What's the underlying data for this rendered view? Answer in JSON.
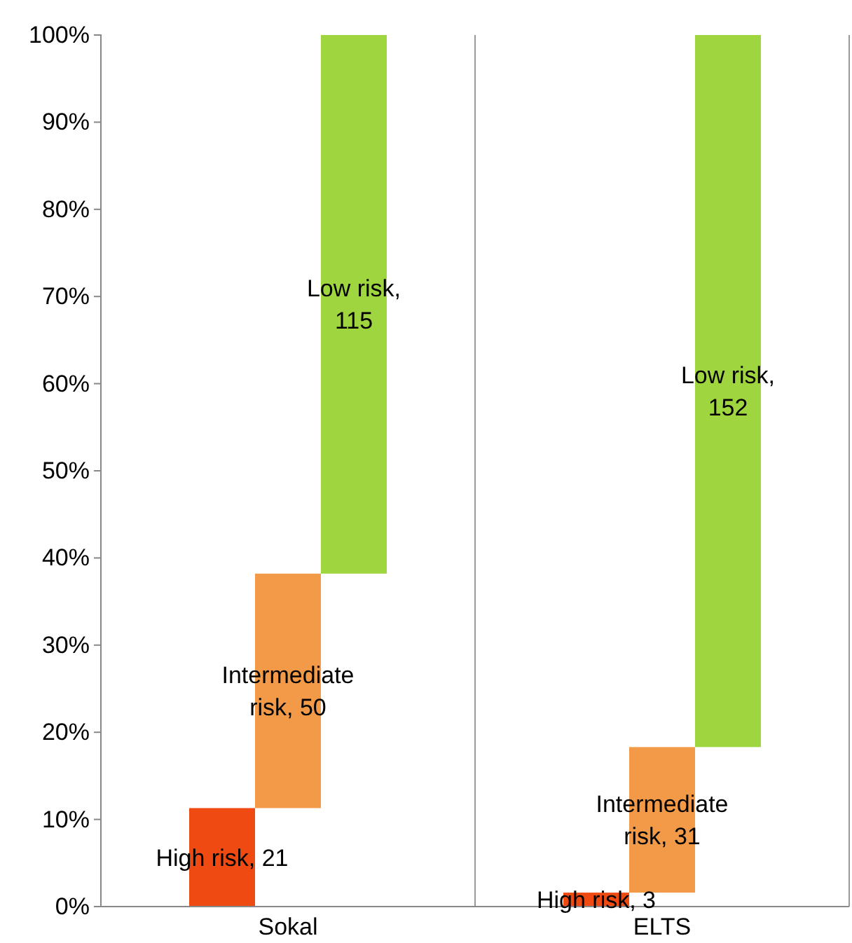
{
  "chart_data": {
    "type": "bar",
    "categories": [
      "Sokal",
      "ELTS"
    ],
    "series": [
      {
        "color": "#ee4a12",
        "values": [
          11.3,
          1.6
        ],
        "base": [
          0,
          0
        ]
      },
      {
        "color": "#f39a48",
        "values": [
          26.9,
          16.7
        ],
        "base": [
          11.3,
          1.6
        ]
      },
      {
        "color": "#9fd640",
        "values": [
          61.8,
          81.7
        ],
        "base": [
          38.2,
          18.3
        ]
      }
    ],
    "annotations": [
      "High risk, 21",
      "Intermediate risk, 50",
      "Low risk, 115",
      "High risk, 3",
      "Intermediate risk, 31",
      "Low risk, 152"
    ],
    "ylim": [
      0,
      100
    ],
    "yticks": [
      {
        "value": 0,
        "label": "0%"
      },
      {
        "value": 10,
        "label": "10%"
      },
      {
        "value": 20,
        "label": "20%"
      },
      {
        "value": 30,
        "label": "30%"
      },
      {
        "value": 40,
        "label": "40%"
      },
      {
        "value": 50,
        "label": "50%"
      },
      {
        "value": 60,
        "label": "60%"
      },
      {
        "value": 70,
        "label": "70%"
      },
      {
        "value": 80,
        "label": "80%"
      },
      {
        "value": 90,
        "label": "90%"
      },
      {
        "value": 100,
        "label": "100%"
      }
    ],
    "grid": "x"
  }
}
